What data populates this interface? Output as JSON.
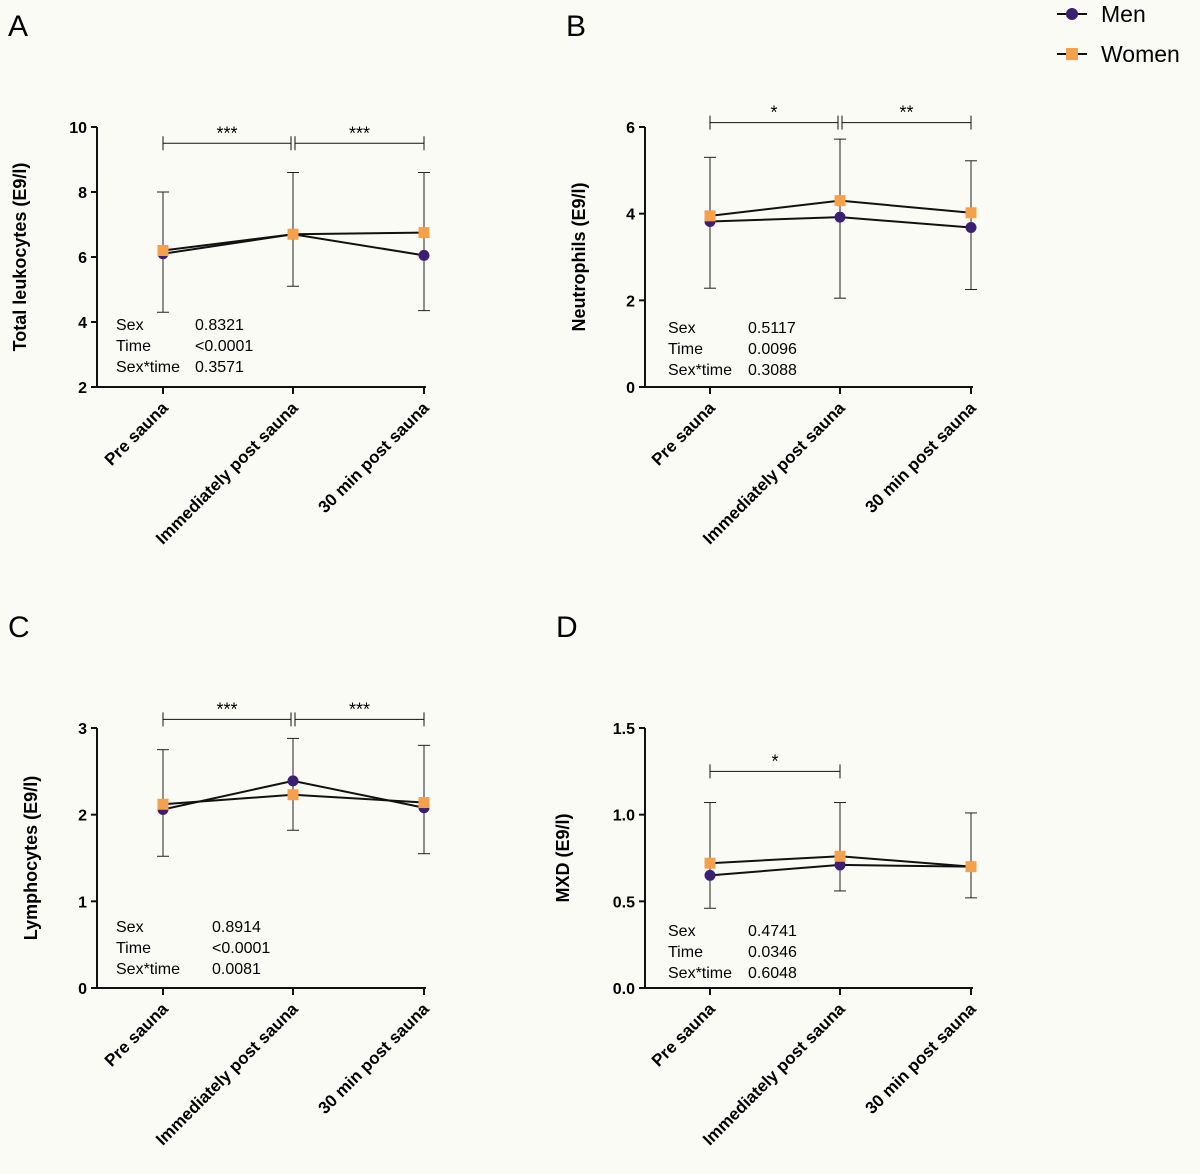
{
  "legend": {
    "items": [
      {
        "name": "Men",
        "color": "#3b1f72",
        "marker": "circle"
      },
      {
        "name": "Women",
        "color": "#f5a04a",
        "marker": "square"
      }
    ]
  },
  "chart_data": [
    {
      "panel": "A",
      "type": "line",
      "ylabel": "Total leukocytes (E9/l)",
      "categories": [
        "Pre sauna",
        "Immediately post sauna",
        "30 min post sauna"
      ],
      "ylim": [
        2,
        10
      ],
      "yticks": [
        "2",
        "4",
        "6",
        "8",
        "10"
      ],
      "series": [
        {
          "name": "Men",
          "values": [
            6.1,
            6.7,
            6.05
          ],
          "err_low": [
            4.3,
            5.1,
            4.35
          ],
          "err_high": [
            8.0,
            8.6,
            8.6
          ]
        },
        {
          "name": "Women",
          "values": [
            6.2,
            6.7,
            6.75
          ]
        }
      ],
      "significance": [
        {
          "from": 0,
          "to": 1,
          "label": "***",
          "y": 9.5
        },
        {
          "from": 1,
          "to": 2,
          "label": "***",
          "y": 9.5
        }
      ],
      "stats": [
        {
          "label": "Sex",
          "value": "0.8321"
        },
        {
          "label": "Time",
          "value": "<0.0001"
        },
        {
          "label": "Sex*time",
          "value": "0.3571"
        }
      ]
    },
    {
      "panel": "B",
      "type": "line",
      "ylabel": "Neutrophils (E9/l)",
      "categories": [
        "Pre sauna",
        "Immediately post sauna",
        "30 min post sauna"
      ],
      "ylim": [
        0,
        6
      ],
      "yticks": [
        "0",
        "2",
        "4",
        "6"
      ],
      "series": [
        {
          "name": "Men",
          "values": [
            3.82,
            3.92,
            3.68
          ],
          "err_low": [
            2.28,
            2.05,
            2.25
          ],
          "err_high": [
            5.3,
            5.72,
            5.22
          ]
        },
        {
          "name": "Women",
          "values": [
            3.95,
            4.3,
            4.02
          ]
        }
      ],
      "significance": [
        {
          "from": 0,
          "to": 1,
          "label": "*",
          "y": 6.1
        },
        {
          "from": 1,
          "to": 2,
          "label": "**",
          "y": 6.1
        }
      ],
      "stats": [
        {
          "label": "Sex",
          "value": "0.5117"
        },
        {
          "label": "Time",
          "value": "0.0096"
        },
        {
          "label": "Sex*time",
          "value": "0.3088"
        }
      ]
    },
    {
      "panel": "C",
      "type": "line",
      "ylabel": "Lymphocytes (E9/l)",
      "categories": [
        "Pre sauna",
        "Immediately post sauna",
        "30 min post sauna"
      ],
      "ylim": [
        0,
        3
      ],
      "yticks": [
        "0",
        "1",
        "2",
        "3"
      ],
      "series": [
        {
          "name": "Men",
          "values": [
            2.06,
            2.39,
            2.08
          ],
          "err_low": [
            1.52,
            1.82,
            1.55
          ],
          "err_high": [
            2.75,
            2.88,
            2.8
          ]
        },
        {
          "name": "Women",
          "values": [
            2.12,
            2.23,
            2.14
          ]
        }
      ],
      "significance": [
        {
          "from": 0,
          "to": 1,
          "label": "***",
          "y": 3.1
        },
        {
          "from": 1,
          "to": 2,
          "label": "***",
          "y": 3.1
        }
      ],
      "stats": [
        {
          "label": "Sex",
          "value": "0.8914"
        },
        {
          "label": "Time",
          "value": "<0.0001"
        },
        {
          "label": "Sex*time",
          "value": "0.0081"
        }
      ]
    },
    {
      "panel": "D",
      "type": "line",
      "ylabel": "MXD (E9/l)",
      "categories": [
        "Pre sauna",
        "Immediately post sauna",
        "30 min post sauna"
      ],
      "ylim": [
        0,
        1.5
      ],
      "yticks": [
        "0.0",
        "0.5",
        "1.0",
        "1.5"
      ],
      "series": [
        {
          "name": "Men",
          "values": [
            0.65,
            0.71,
            0.7
          ],
          "err_low": [
            0.46,
            0.56,
            0.52
          ],
          "err_high": [
            1.07,
            1.07,
            1.01
          ]
        },
        {
          "name": "Women",
          "values": [
            0.72,
            0.76,
            0.7
          ]
        }
      ],
      "significance": [
        {
          "from": 0,
          "to": 1,
          "label": "*",
          "y": 1.25
        }
      ],
      "stats": [
        {
          "label": "Sex",
          "value": "0.4741"
        },
        {
          "label": "Time",
          "value": "0.0346"
        },
        {
          "label": "Sex*time",
          "value": "0.6048"
        }
      ]
    }
  ]
}
